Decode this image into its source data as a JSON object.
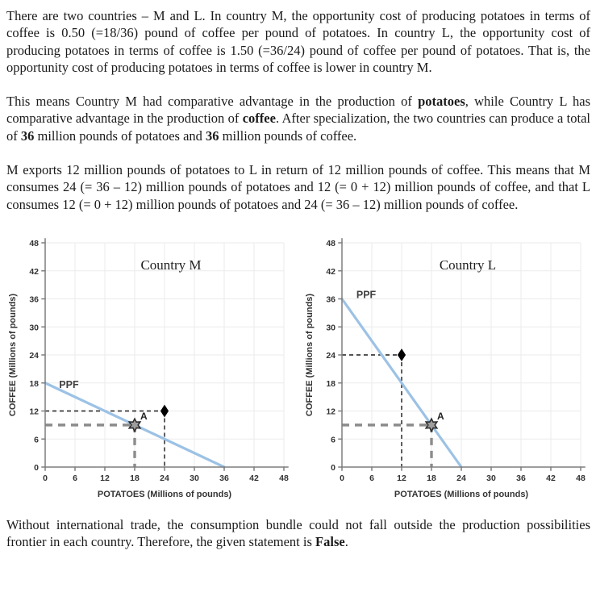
{
  "document": {
    "text_color": "#1a1a1a",
    "paragraphs": [
      {
        "runs": [
          {
            "text": "There are two countries – M and L. In country M, the opportunity cost of producing potatoes in terms of coffee is 0.50 (=18/36) pound of coffee per pound of potatoes. In country L, the opportunity cost of producing potatoes in terms of coffee is 1.50 (=36/24) pound of coffee per pound of potatoes. That is, the opportunity cost of producing potatoes in terms of coffee is lower in country M.",
            "bold": false
          }
        ]
      },
      {
        "runs": [
          {
            "text": "This means Country M had comparative advantage in the production of ",
            "bold": false
          },
          {
            "text": "potatoes",
            "bold": true
          },
          {
            "text": ", while Country L has comparative advantage in the production of ",
            "bold": false
          },
          {
            "text": "coffee",
            "bold": true
          },
          {
            "text": ". After specialization, the two countries can produce a total of ",
            "bold": false
          },
          {
            "text": "36",
            "bold": true
          },
          {
            "text": " million pounds of potatoes and ",
            "bold": false
          },
          {
            "text": "36",
            "bold": true
          },
          {
            "text": " million pounds of coffee.",
            "bold": false
          }
        ]
      },
      {
        "runs": [
          {
            "text": "M exports 12 million pounds of potatoes to L in return of 12 million pounds of coffee. This means that M consumes 24 (= 36 – 12) million pounds of potatoes and 12 (= 0 + 12) million pounds of coffee, and that L consumes 12 (= 0 + 12) million pounds of potatoes and 24 (= 36 – 12) million pounds of coffee.",
            "bold": false
          }
        ]
      },
      {
        "runs": [
          {
            "text": "Without international trade, the consumption bundle could not fall outside the production possibilities frontier in each country. Therefore, the given statement is ",
            "bold": false
          },
          {
            "text": "False",
            "bold": true
          },
          {
            "text": ".",
            "bold": false
          }
        ]
      }
    ]
  },
  "chart_data": [
    {
      "type": "line",
      "title": "Country M",
      "xlabel": "POTATOES (Millions of pounds)",
      "ylabel": "COFFEE (Millions of pounds)",
      "xlim": [
        0,
        48
      ],
      "ylim": [
        0,
        48
      ],
      "xticks": [
        0,
        6,
        12,
        18,
        24,
        30,
        36,
        42,
        48
      ],
      "yticks": [
        0,
        6,
        12,
        18,
        24,
        30,
        36,
        42,
        48
      ],
      "grid": true,
      "series": [
        {
          "name": "PPF",
          "color": "#9cc2e5",
          "points": [
            [
              0,
              18
            ],
            [
              36,
              0
            ]
          ],
          "label_pos": [
            2.8,
            16.9
          ]
        }
      ],
      "guides": [
        {
          "x": 24,
          "y": 12,
          "color": "#1a1a1a",
          "weight": "thin"
        },
        {
          "x": 18,
          "y": 9,
          "color": "#8c8c8c",
          "weight": "thick"
        }
      ],
      "markers": [
        {
          "shape": "diamond",
          "x": 24,
          "y": 12,
          "fill": "#000000",
          "stroke": "#000000",
          "label": ""
        },
        {
          "shape": "star",
          "x": 18,
          "y": 9,
          "fill": "#9e9e9e",
          "stroke": "#2e2e2e",
          "label": "A"
        }
      ]
    },
    {
      "type": "line",
      "title": "Country L",
      "xlabel": "POTATOES (Millions of pounds)",
      "ylabel": "COFFEE (Millions of pounds)",
      "xlim": [
        0,
        48
      ],
      "ylim": [
        0,
        48
      ],
      "xticks": [
        0,
        6,
        12,
        18,
        24,
        30,
        36,
        42,
        48
      ],
      "yticks": [
        0,
        6,
        12,
        18,
        24,
        30,
        36,
        42,
        48
      ],
      "grid": true,
      "series": [
        {
          "name": "PPF",
          "color": "#9cc2e5",
          "points": [
            [
              0,
              36
            ],
            [
              24,
              0
            ]
          ],
          "label_pos": [
            2.9,
            36.2
          ]
        }
      ],
      "guides": [
        {
          "x": 12,
          "y": 24,
          "color": "#1a1a1a",
          "weight": "thin"
        },
        {
          "x": 18,
          "y": 9,
          "color": "#8c8c8c",
          "weight": "thick"
        }
      ],
      "markers": [
        {
          "shape": "diamond",
          "x": 12,
          "y": 24,
          "fill": "#000000",
          "stroke": "#000000",
          "label": ""
        },
        {
          "shape": "star",
          "x": 18,
          "y": 9,
          "fill": "#9e9e9e",
          "stroke": "#2e2e2e",
          "label": "A"
        }
      ]
    }
  ]
}
